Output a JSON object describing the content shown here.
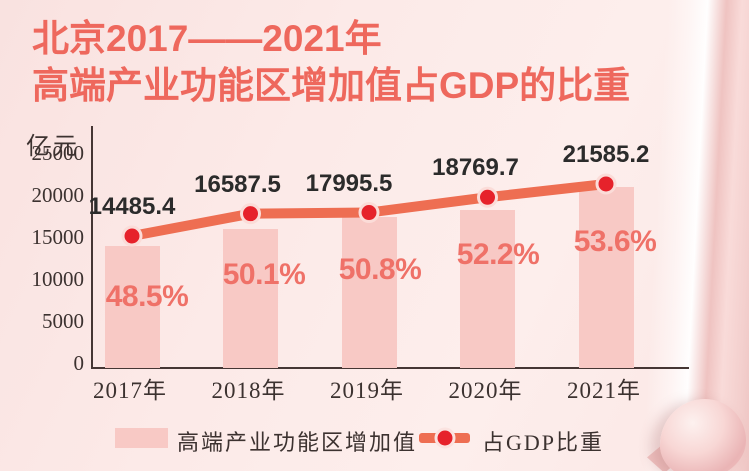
{
  "title": {
    "line1": "北京2017——2021年",
    "line2": "高端产业功能区增加值占GDP的比重"
  },
  "chart_data": {
    "type": "bar",
    "title": "北京2017——2021年高端产业功能区增加值占GDP的比重",
    "categories": [
      "2017年",
      "2018年",
      "2019年",
      "2020年",
      "2021年"
    ],
    "series": [
      {
        "name": "高端产业功能区增加值",
        "type": "bar",
        "unit": "亿元",
        "values": [
          14485.4,
          16587.5,
          17995.5,
          18769.7,
          21585.2
        ]
      },
      {
        "name": "占GDP比重",
        "type": "line",
        "unit": "%",
        "values": [
          48.5,
          50.1,
          50.8,
          52.2,
          53.6
        ]
      }
    ],
    "value_labels": [
      "14485.4",
      "16587.5",
      "17995.5",
      "18769.7",
      "21585.2"
    ],
    "percent_labels": [
      "48.5%",
      "50.1%",
      "50.8%",
      "52.2%",
      "53.6%"
    ],
    "y_axis": {
      "label": "亿元",
      "ticks": [
        "0",
        "5000",
        "10000",
        "15000",
        "20000",
        "25000"
      ],
      "max": 25000
    },
    "legend": [
      {
        "label": "高端产业功能区增加值"
      },
      {
        "label": "占GDP比重"
      }
    ],
    "legend_position": "bottom",
    "grid": false
  },
  "colors": {
    "background": "#fbe8e6",
    "title_text": "#ee685d",
    "bar_fill": "#f8c9c5",
    "line_stroke": "#ee6e52",
    "dot_fill": "#e6222b",
    "dot_ring": "#fbdcd8",
    "percent_text": "#ef7168",
    "value_text": "#2b2b2b",
    "axis_text": "#3c3230",
    "axis_line": "#453634"
  }
}
